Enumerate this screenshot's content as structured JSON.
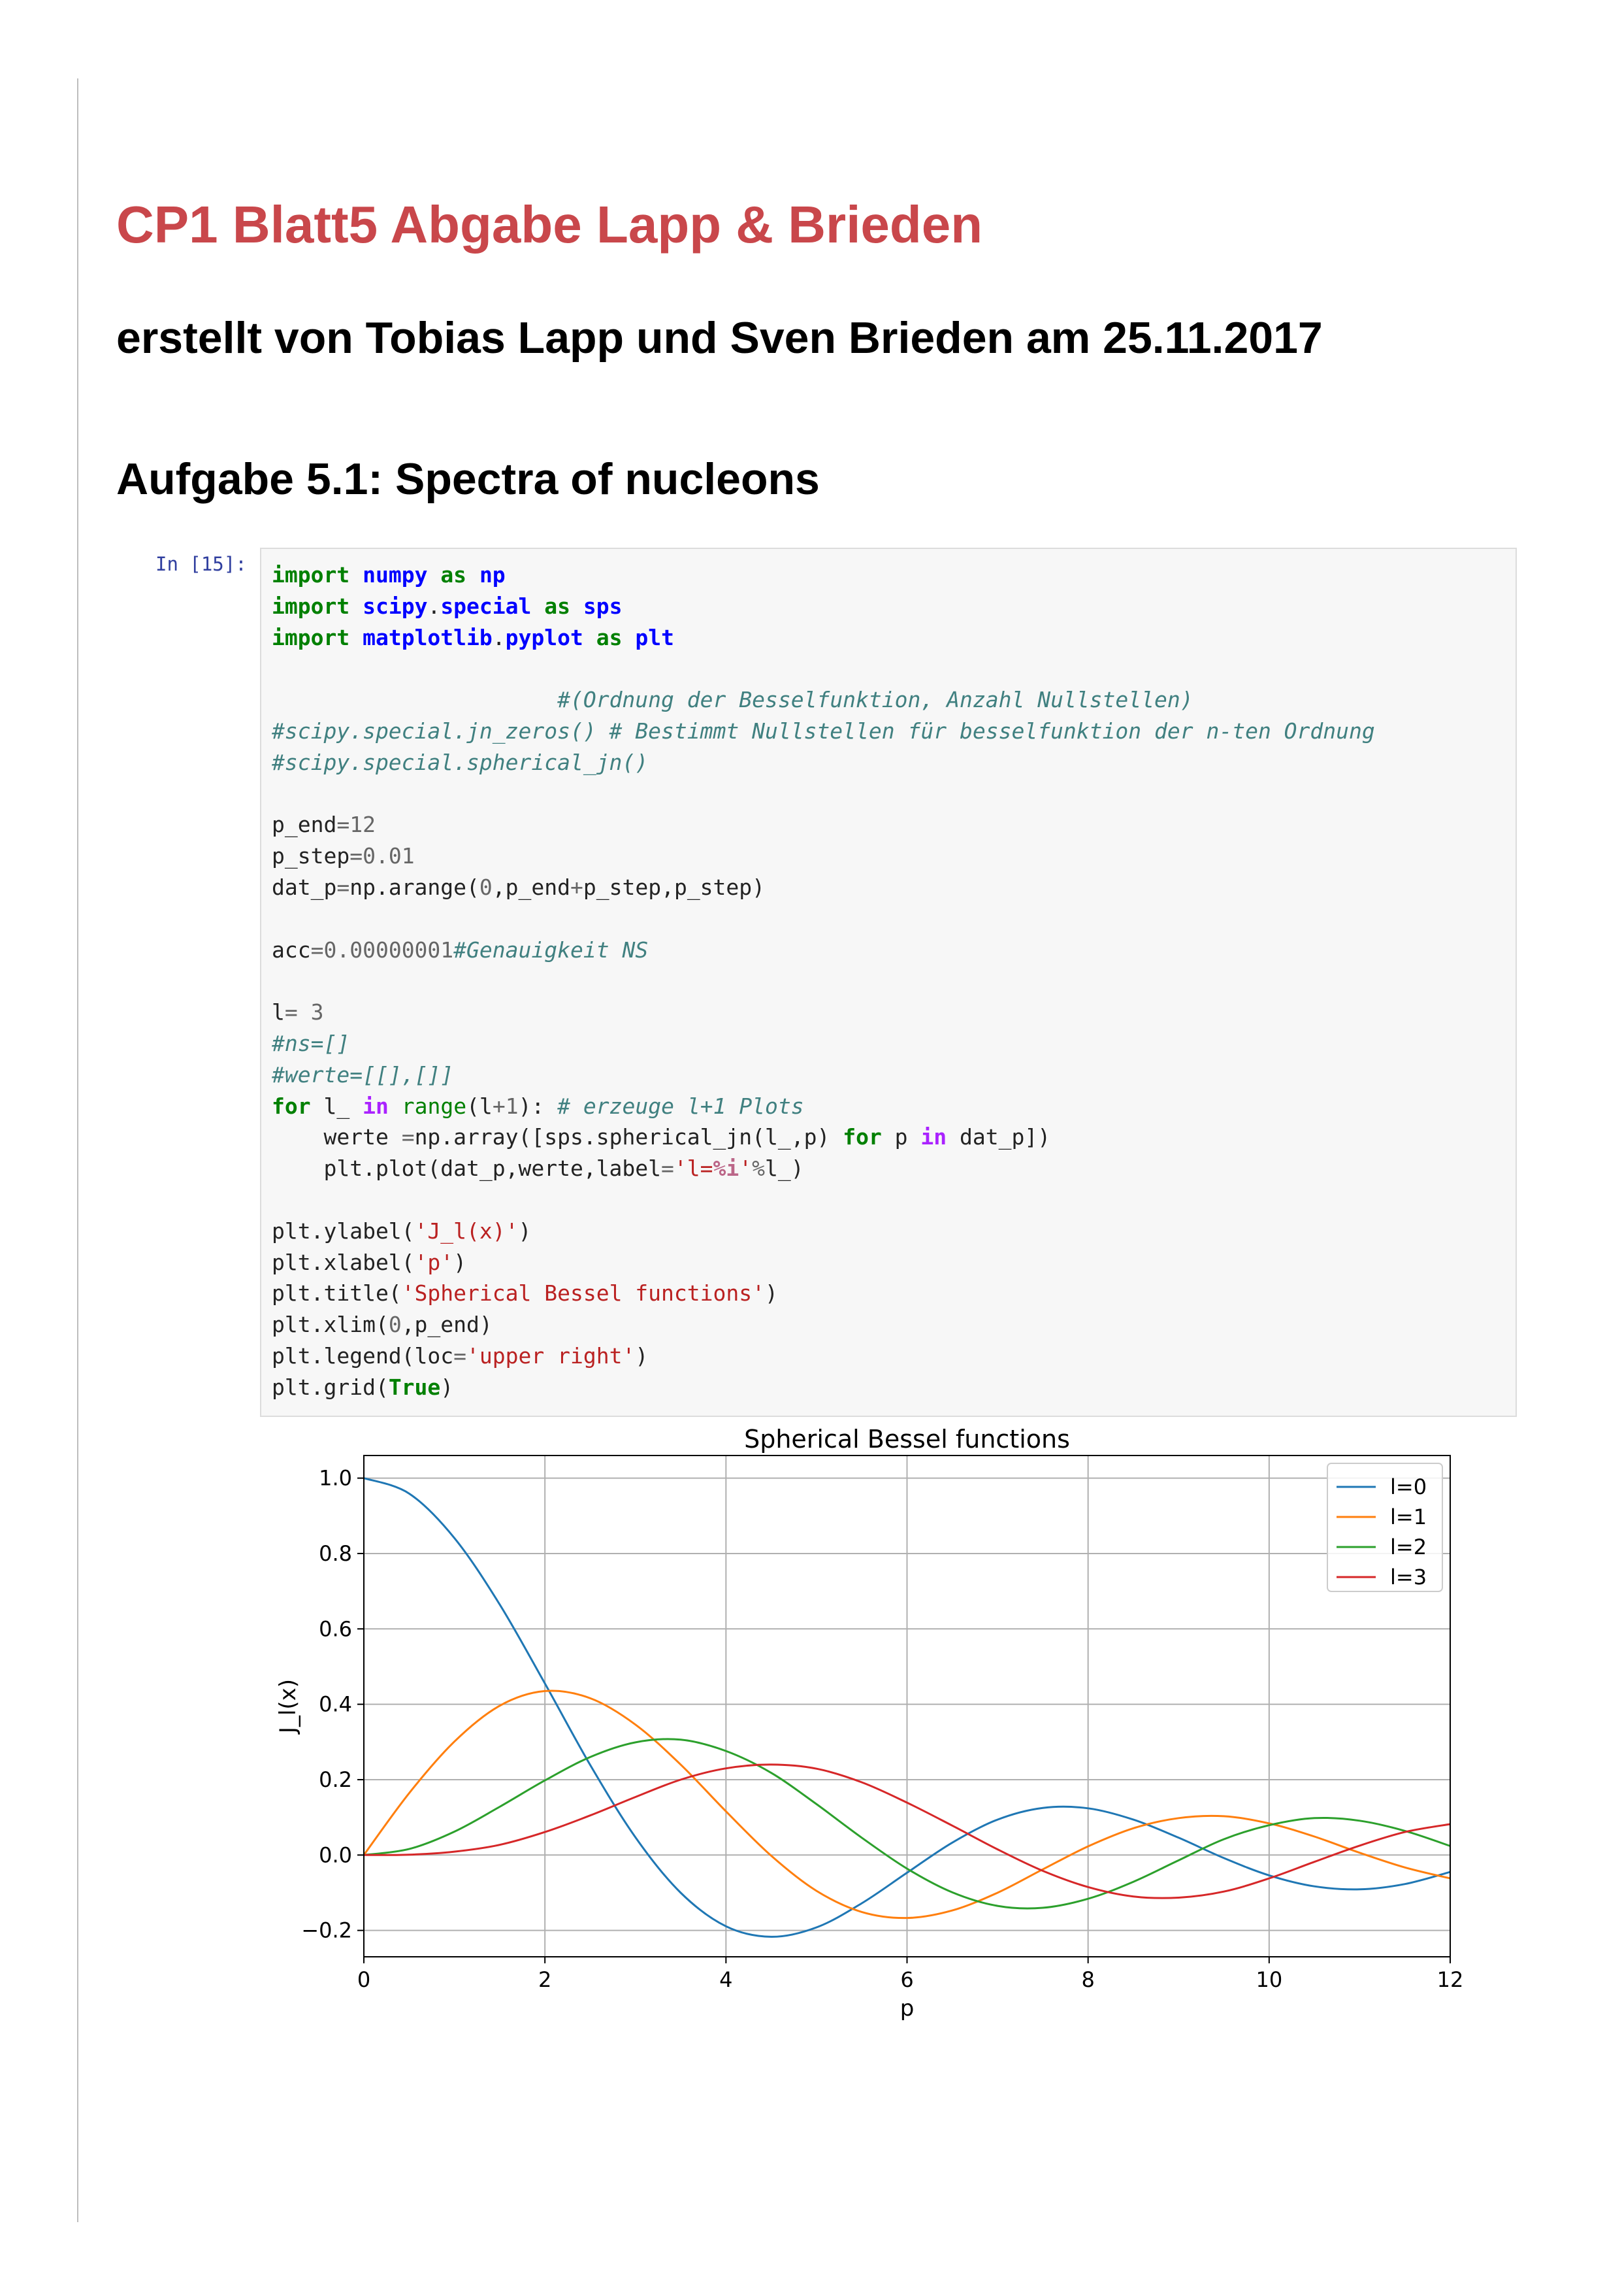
{
  "heading": {
    "title": "CP1 Blatt5 Abgabe Lapp & Brieden",
    "subtitle": "erstellt von Tobias Lapp und Sven Brieden am 25.11.2017",
    "section": "Aufgabe 5.1: Spectra of nucleons"
  },
  "cell": {
    "prompt": "In [15]:",
    "code_lines": [
      "import numpy as np",
      "import scipy.special as sps",
      "import matplotlib.pyplot as plt",
      "",
      "                      #(Ordnung der Besselfunktion, Anzahl Nullstellen)",
      "#scipy.special.jn_zeros() # Bestimmt Nullstellen für besselfunktion der n-ten Ordnung",
      "#scipy.special.spherical_jn()",
      "",
      "p_end=12",
      "p_step=0.01",
      "dat_p=np.arange(0,p_end+p_step,p_step)",
      "",
      "acc=0.00000001#Genauigkeit NS",
      "",
      "l= 3",
      "#ns=[]",
      "#werte=[[],[]]",
      "for l_ in range(l+1): # erzeuge l+1 Plots",
      "    werte =np.array([sps.spherical_jn(l_,p) for p in dat_p])",
      "    plt.plot(dat_p,werte,label='l=%i'%l_)",
      "",
      "plt.ylabel('J_l(x)')",
      "plt.xlabel('p')",
      "plt.title('Spherical Bessel functions')",
      "plt.xlim(0,p_end)",
      "plt.legend(loc='upper right')",
      "plt.grid(True)"
    ]
  },
  "chart_data": {
    "type": "line",
    "title": "Spherical Bessel functions",
    "xlabel": "p",
    "ylabel": "J_l(x)",
    "xlim": [
      0,
      12
    ],
    "ylim": [
      -0.27,
      1.06
    ],
    "xticks": [
      "0",
      "2",
      "4",
      "6",
      "8",
      "10",
      "12"
    ],
    "yticks": [
      "−0.2",
      "0.0",
      "0.2",
      "0.4",
      "0.6",
      "0.8",
      "1.0"
    ],
    "grid": true,
    "legend_position": "upper right",
    "x": [
      0,
      0.5,
      1,
      1.5,
      2,
      2.5,
      3,
      3.5,
      4,
      4.5,
      5,
      5.5,
      6,
      6.5,
      7,
      7.5,
      8,
      8.5,
      9,
      9.5,
      10,
      10.5,
      11,
      11.5,
      12
    ],
    "series": [
      {
        "name": "l=0",
        "color": "#1f77b4",
        "values": [
          1.0,
          0.959,
          0.841,
          0.665,
          0.455,
          0.239,
          0.047,
          -0.1,
          -0.189,
          -0.217,
          -0.192,
          -0.128,
          -0.047,
          0.033,
          0.094,
          0.125,
          0.124,
          0.094,
          0.046,
          -0.008,
          -0.054,
          -0.083,
          -0.091,
          -0.077,
          -0.045
        ]
      },
      {
        "name": "l=1",
        "color": "#ff7f0e",
        "values": [
          0.0,
          0.164,
          0.301,
          0.396,
          0.435,
          0.416,
          0.346,
          0.24,
          0.116,
          -0.002,
          -0.095,
          -0.151,
          -0.167,
          -0.147,
          -0.1,
          -0.038,
          0.023,
          0.071,
          0.098,
          0.103,
          0.084,
          0.049,
          0.006,
          -0.033,
          -0.062
        ]
      },
      {
        "name": "l=2",
        "color": "#2ca02c",
        "values": [
          0.0,
          0.016,
          0.062,
          0.128,
          0.198,
          0.26,
          0.299,
          0.306,
          0.276,
          0.218,
          0.135,
          0.046,
          -0.036,
          -0.099,
          -0.135,
          -0.14,
          -0.116,
          -0.071,
          -0.014,
          0.042,
          0.079,
          0.098,
          0.091,
          0.064,
          0.024
        ]
      },
      {
        "name": "l=3",
        "color": "#d62728",
        "values": [
          0.0,
          0.001,
          0.009,
          0.027,
          0.061,
          0.105,
          0.154,
          0.2,
          0.23,
          0.24,
          0.229,
          0.193,
          0.139,
          0.078,
          0.015,
          -0.042,
          -0.085,
          -0.11,
          -0.113,
          -0.097,
          -0.062,
          -0.018,
          0.025,
          0.061,
          0.082
        ]
      }
    ]
  }
}
